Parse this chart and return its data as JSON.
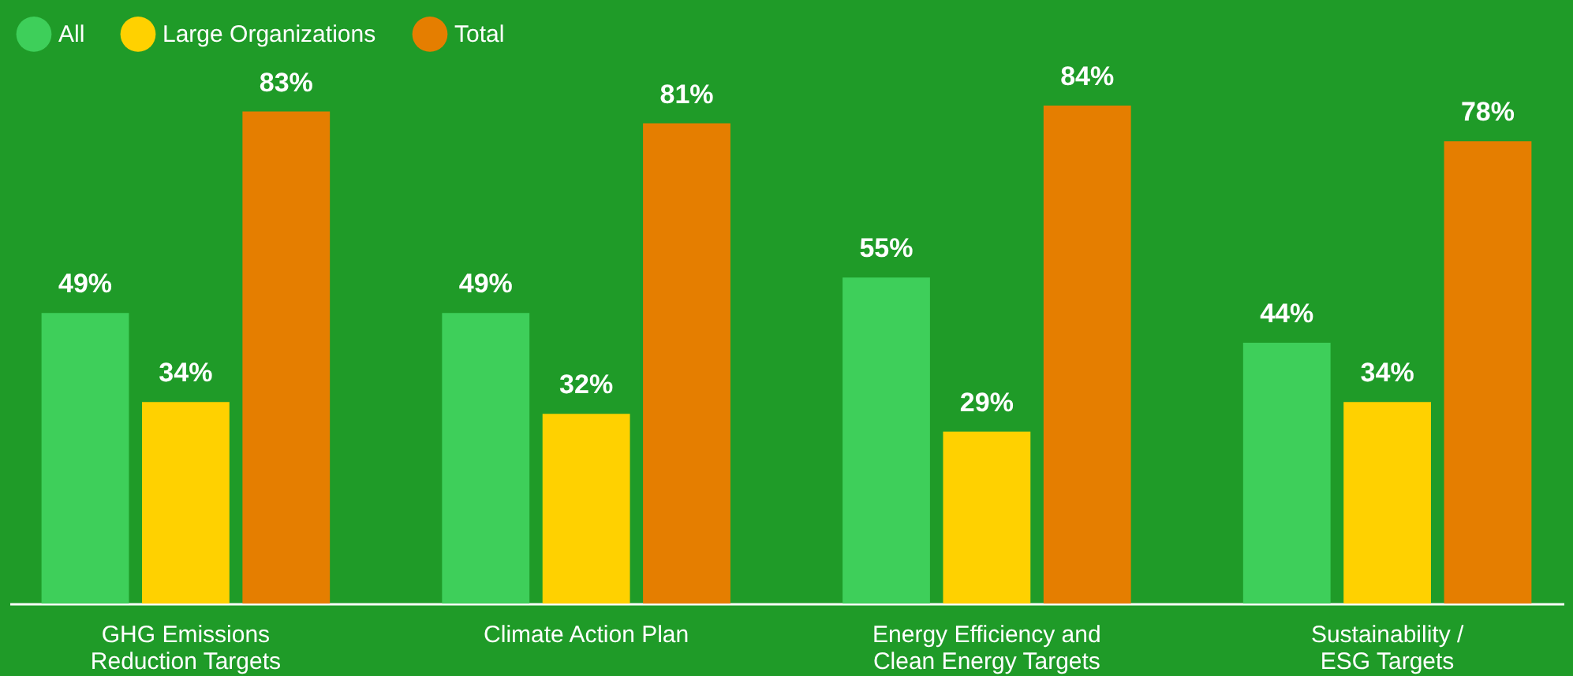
{
  "chart_data": {
    "type": "bar",
    "categories": [
      "GHG Emissions\nReduction Targets",
      "Climate Action Plan",
      "Energy Efficiency and\nClean Energy Targets",
      "Sustainability /\nESG Targets"
    ],
    "series": [
      {
        "name": "All",
        "color": "#3ecf5a",
        "values": [
          49,
          49,
          55,
          44
        ],
        "value_labels": [
          "49%",
          "49%",
          "55%",
          "44%"
        ]
      },
      {
        "name": "Large Organizations",
        "color": "#ffd100",
        "values": [
          34,
          32,
          29,
          34
        ],
        "value_labels": [
          "34%",
          "32%",
          "29%",
          "34%"
        ]
      },
      {
        "name": "Total",
        "color": "#e57e00",
        "values": [
          83,
          81,
          84,
          78
        ],
        "value_labels": [
          "83%",
          "81%",
          "84%",
          "78%"
        ]
      }
    ],
    "legend": "top left",
    "grid": false
  }
}
